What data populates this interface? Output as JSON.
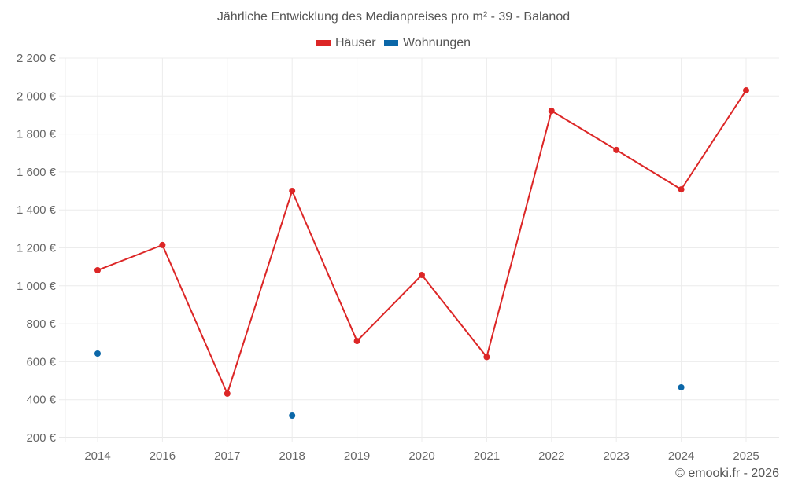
{
  "chart_data": {
    "type": "line",
    "title": "Jährliche Entwicklung des Medianpreises pro m² - 39 - Balanod",
    "xlabel": "",
    "ylabel": "",
    "categories": [
      "2014",
      "2016",
      "2017",
      "2018",
      "2019",
      "2020",
      "2021",
      "2022",
      "2023",
      "2024",
      "2025"
    ],
    "series": [
      {
        "name": "Häuser",
        "color": "#dc2626",
        "values": [
          1082,
          1215,
          432,
          1500,
          709,
          1057,
          625,
          1922,
          1716,
          1508,
          2030
        ],
        "line": true
      },
      {
        "name": "Wohnungen",
        "color": "#0b67a8",
        "values": [
          643,
          null,
          null,
          316,
          null,
          null,
          null,
          null,
          null,
          465,
          null
        ],
        "line": false
      }
    ],
    "ylim": [
      200,
      2200
    ],
    "yticks": [
      200,
      400,
      600,
      800,
      1000,
      1200,
      1400,
      1600,
      1800,
      2000,
      2200
    ],
    "ytick_labels": [
      "200 €",
      "400 €",
      "600 €",
      "800 €",
      "1 000 €",
      "1 200 €",
      "1 400 €",
      "1 600 €",
      "1 800 €",
      "2 000 €",
      "2 200 €"
    ],
    "grid": true,
    "legend_position": "top-center"
  },
  "footer": {
    "credit": "© emooki.fr - 2026"
  }
}
